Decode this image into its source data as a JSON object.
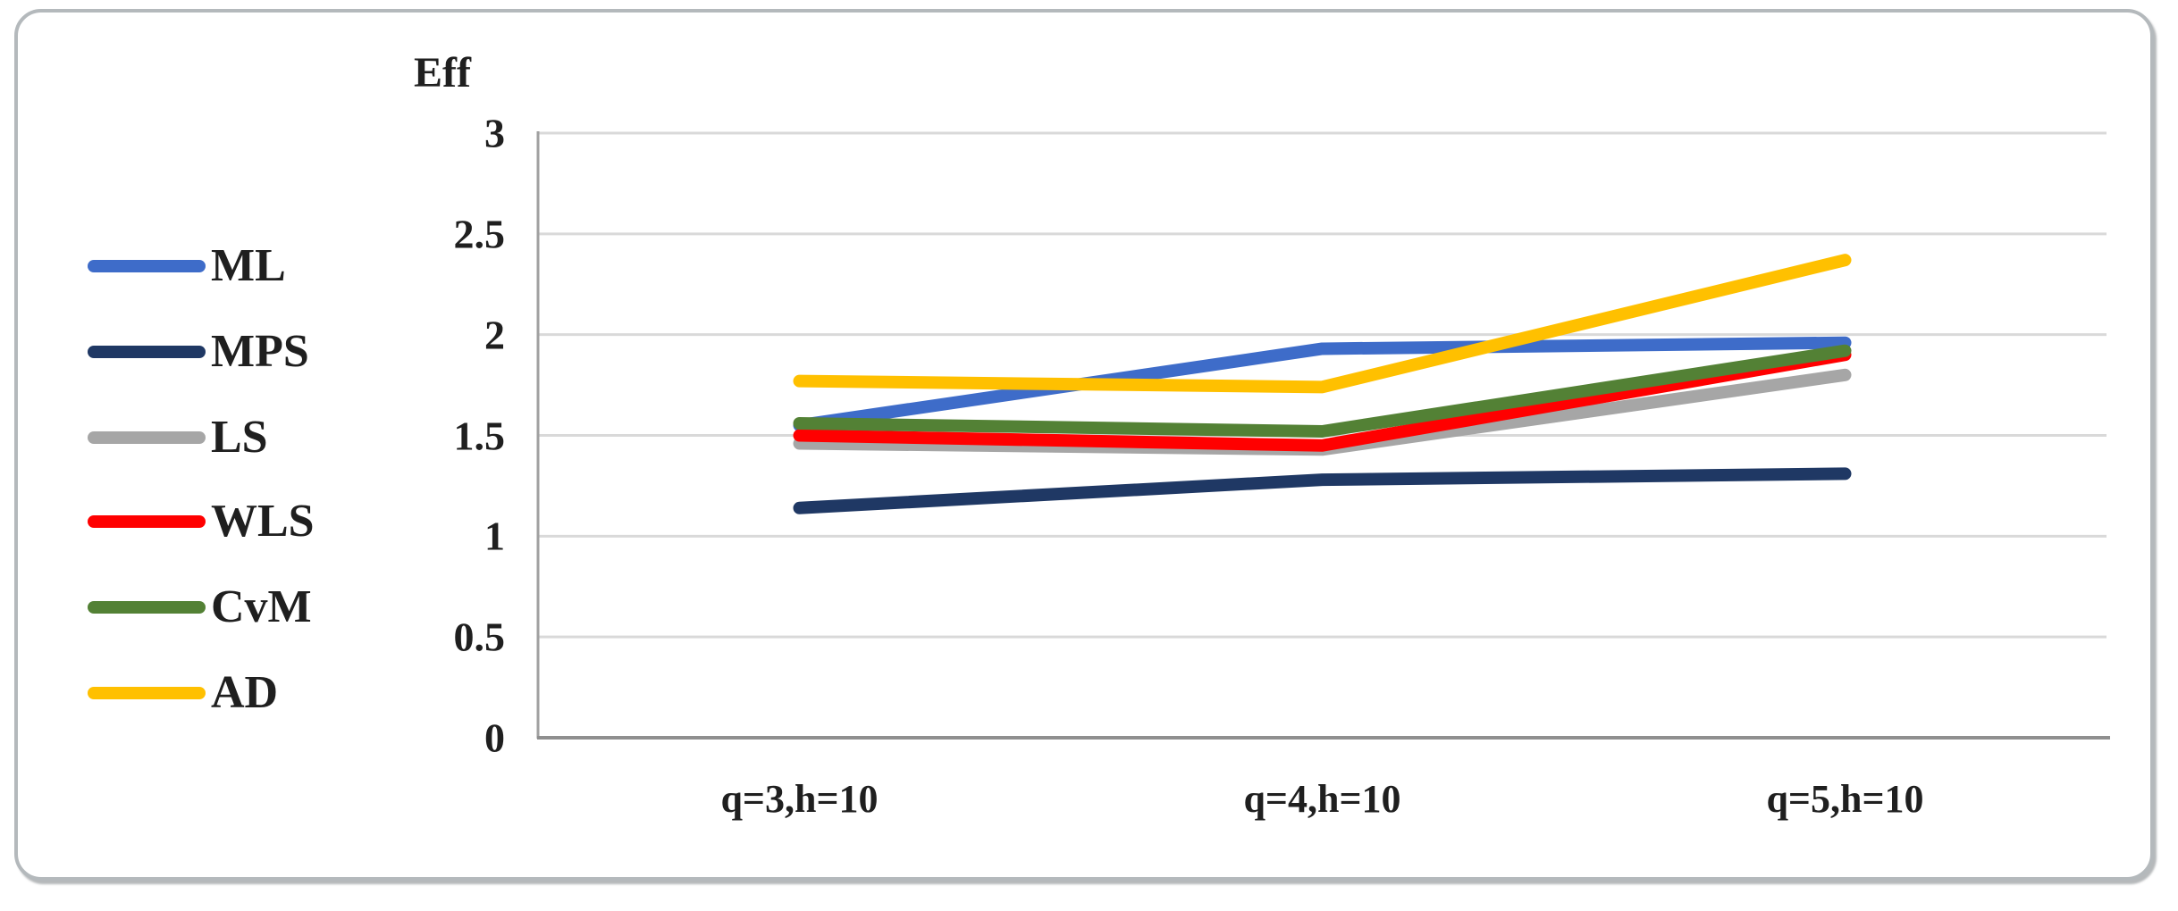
{
  "figure": {
    "y_axis_title": "Eff"
  },
  "chart_data": {
    "type": "line",
    "title": "",
    "xlabel": "",
    "ylabel": "Eff",
    "categories": [
      "q=3,h=10",
      "q=4,h=10",
      "q=5,h=10"
    ],
    "series": [
      {
        "name": "ML",
        "color": "#3E6CC9",
        "values": [
          1.55,
          1.93,
          1.96
        ]
      },
      {
        "name": "MPS",
        "color": "#1F3864",
        "values": [
          1.14,
          1.28,
          1.31
        ]
      },
      {
        "name": "LS",
        "color": "#A6A6A6",
        "values": [
          1.46,
          1.43,
          1.8
        ]
      },
      {
        "name": "WLS",
        "color": "#FF0000",
        "values": [
          1.5,
          1.45,
          1.9
        ]
      },
      {
        "name": "CvM",
        "color": "#538135",
        "values": [
          1.56,
          1.52,
          1.92
        ]
      },
      {
        "name": "AD",
        "color": "#FFC000",
        "values": [
          1.77,
          1.74,
          2.37
        ]
      }
    ],
    "ylim": [
      0,
      3
    ],
    "yticks": [
      3,
      2.5,
      2,
      1.5,
      1,
      0.5,
      0
    ],
    "ytick_labels": [
      "3",
      "2.5",
      "2",
      "1.5",
      "1",
      "0.5",
      "0"
    ],
    "grid": "horizontal",
    "gridline_color": "#d9d9d9",
    "axis_line_color": "#a0a0a0",
    "legend_position": "left"
  }
}
